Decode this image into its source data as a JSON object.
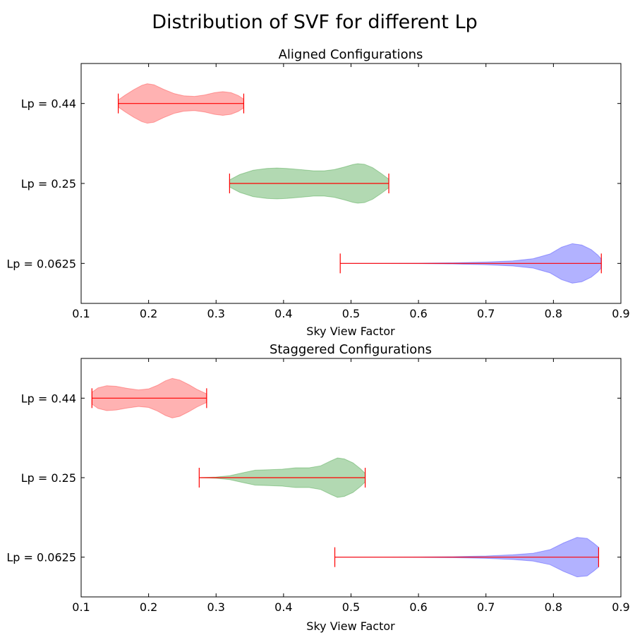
{
  "figure": {
    "suptitle": "Distribution of SVF for different Lp"
  },
  "colors": {
    "range_line": "#ff0000",
    "axes": "#000000"
  },
  "chart_data": [
    {
      "type": "violin",
      "orientation": "horizontal",
      "title": "Aligned Configurations",
      "xlabel": "Sky View Factor",
      "ylabel": "",
      "xlim": [
        0.1,
        0.9
      ],
      "xticks": [
        "0.1",
        "0.2",
        "0.3",
        "0.4",
        "0.5",
        "0.6",
        "0.7",
        "0.8",
        "0.9"
      ],
      "categories": [
        "Lp = 0.44",
        "Lp = 0.25",
        "Lp = 0.0625"
      ],
      "series": [
        {
          "name": "Lp = 0.44",
          "color": "#ff0000",
          "min": 0.155,
          "max": 0.341,
          "density": [
            [
              0.155,
              0.18
            ],
            [
              0.165,
              0.42
            ],
            [
              0.178,
              0.7
            ],
            [
              0.19,
              0.92
            ],
            [
              0.198,
              1.0
            ],
            [
              0.208,
              0.95
            ],
            [
              0.222,
              0.72
            ],
            [
              0.238,
              0.5
            ],
            [
              0.252,
              0.39
            ],
            [
              0.268,
              0.36
            ],
            [
              0.283,
              0.43
            ],
            [
              0.298,
              0.55
            ],
            [
              0.31,
              0.6
            ],
            [
              0.322,
              0.55
            ],
            [
              0.333,
              0.4
            ],
            [
              0.341,
              0.22
            ]
          ]
        },
        {
          "name": "Lp = 0.25",
          "color": "#008000",
          "min": 0.32,
          "max": 0.556,
          "density": [
            [
              0.32,
              0.18
            ],
            [
              0.335,
              0.45
            ],
            [
              0.355,
              0.67
            ],
            [
              0.375,
              0.76
            ],
            [
              0.39,
              0.78
            ],
            [
              0.405,
              0.76
            ],
            [
              0.425,
              0.7
            ],
            [
              0.445,
              0.64
            ],
            [
              0.46,
              0.64
            ],
            [
              0.475,
              0.7
            ],
            [
              0.49,
              0.83
            ],
            [
              0.503,
              0.96
            ],
            [
              0.51,
              1.0
            ],
            [
              0.52,
              0.97
            ],
            [
              0.532,
              0.8
            ],
            [
              0.545,
              0.5
            ],
            [
              0.556,
              0.22
            ]
          ]
        },
        {
          "name": "Lp = 0.0625",
          "color": "#0000ff",
          "min": 0.484,
          "max": 0.871,
          "density": [
            [
              0.484,
              0.0
            ],
            [
              0.55,
              0.005
            ],
            [
              0.6,
              0.012
            ],
            [
              0.65,
              0.03
            ],
            [
              0.7,
              0.07
            ],
            [
              0.74,
              0.13
            ],
            [
              0.77,
              0.24
            ],
            [
              0.795,
              0.48
            ],
            [
              0.812,
              0.82
            ],
            [
              0.828,
              1.0
            ],
            [
              0.842,
              0.93
            ],
            [
              0.856,
              0.7
            ],
            [
              0.866,
              0.42
            ],
            [
              0.871,
              0.22
            ]
          ]
        }
      ]
    },
    {
      "type": "violin",
      "orientation": "horizontal",
      "title": "Staggered Configurations",
      "xlabel": "Sky View Factor",
      "ylabel": "",
      "xlim": [
        0.1,
        0.9
      ],
      "xticks": [
        "0.1",
        "0.2",
        "0.3",
        "0.4",
        "0.5",
        "0.6",
        "0.7",
        "0.8",
        "0.9"
      ],
      "categories": [
        "Lp = 0.44",
        "Lp = 0.25",
        "Lp = 0.0625"
      ],
      "series": [
        {
          "name": "Lp = 0.44",
          "color": "#ff0000",
          "min": 0.116,
          "max": 0.286,
          "density": [
            [
              0.116,
              0.3
            ],
            [
              0.125,
              0.52
            ],
            [
              0.138,
              0.63
            ],
            [
              0.152,
              0.6
            ],
            [
              0.168,
              0.5
            ],
            [
              0.185,
              0.42
            ],
            [
              0.2,
              0.47
            ],
            [
              0.213,
              0.65
            ],
            [
              0.225,
              0.88
            ],
            [
              0.235,
              1.0
            ],
            [
              0.246,
              0.92
            ],
            [
              0.26,
              0.68
            ],
            [
              0.272,
              0.44
            ],
            [
              0.286,
              0.22
            ]
          ]
        },
        {
          "name": "Lp = 0.25",
          "color": "#008000",
          "min": 0.275,
          "max": 0.521,
          "density": [
            [
              0.275,
              0.0
            ],
            [
              0.3,
              0.03
            ],
            [
              0.32,
              0.1
            ],
            [
              0.34,
              0.25
            ],
            [
              0.358,
              0.38
            ],
            [
              0.378,
              0.4
            ],
            [
              0.398,
              0.43
            ],
            [
              0.418,
              0.5
            ],
            [
              0.438,
              0.5
            ],
            [
              0.455,
              0.6
            ],
            [
              0.47,
              0.85
            ],
            [
              0.48,
              1.0
            ],
            [
              0.49,
              0.95
            ],
            [
              0.503,
              0.75
            ],
            [
              0.514,
              0.45
            ],
            [
              0.521,
              0.22
            ]
          ]
        },
        {
          "name": "Lp = 0.0625",
          "color": "#0000ff",
          "min": 0.476,
          "max": 0.867,
          "density": [
            [
              0.476,
              0.0
            ],
            [
              0.55,
              0.005
            ],
            [
              0.6,
              0.012
            ],
            [
              0.65,
              0.025
            ],
            [
              0.7,
              0.06
            ],
            [
              0.74,
              0.12
            ],
            [
              0.77,
              0.2
            ],
            [
              0.795,
              0.38
            ],
            [
              0.815,
              0.72
            ],
            [
              0.835,
              1.0
            ],
            [
              0.85,
              0.95
            ],
            [
              0.86,
              0.7
            ],
            [
              0.867,
              0.5
            ]
          ]
        }
      ]
    }
  ]
}
